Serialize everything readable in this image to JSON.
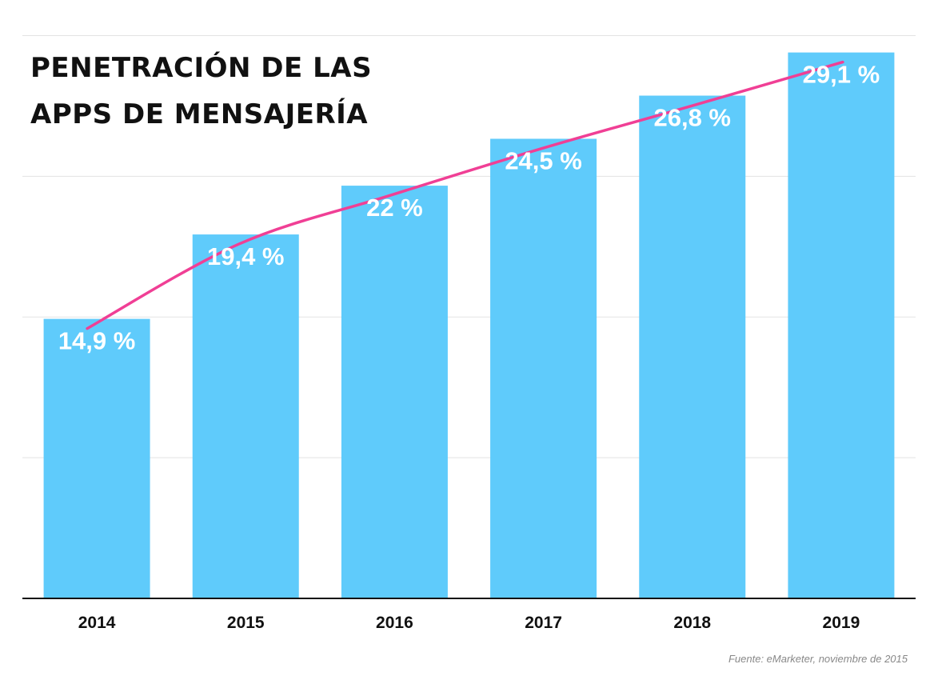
{
  "title_lines": [
    "PENETRACIÓN DE LAS",
    "APPS DE MENSAJERÍA"
  ],
  "source": "Fuente: eMarketer, noviembre de 2015",
  "colors": {
    "bar": "#5fcbfb",
    "trend": "#f03f95",
    "grid": "#e3e3e3",
    "axis": "#111111"
  },
  "chart_data": {
    "type": "bar",
    "title": "PENETRACIÓN DE LAS APPS DE MENSAJERÍA",
    "categories": [
      "2014",
      "2015",
      "2016",
      "2017",
      "2018",
      "2019"
    ],
    "values": [
      14.9,
      19.4,
      22,
      24.5,
      26.8,
      29.1
    ],
    "data_labels": [
      "14,9 %",
      "19,4 %",
      "22 %",
      "24,5 %",
      "26,8 %",
      "29,1 %"
    ],
    "ylim": [
      0,
      30
    ],
    "grid": true,
    "trendline": true,
    "xlabel": "",
    "ylabel": ""
  }
}
